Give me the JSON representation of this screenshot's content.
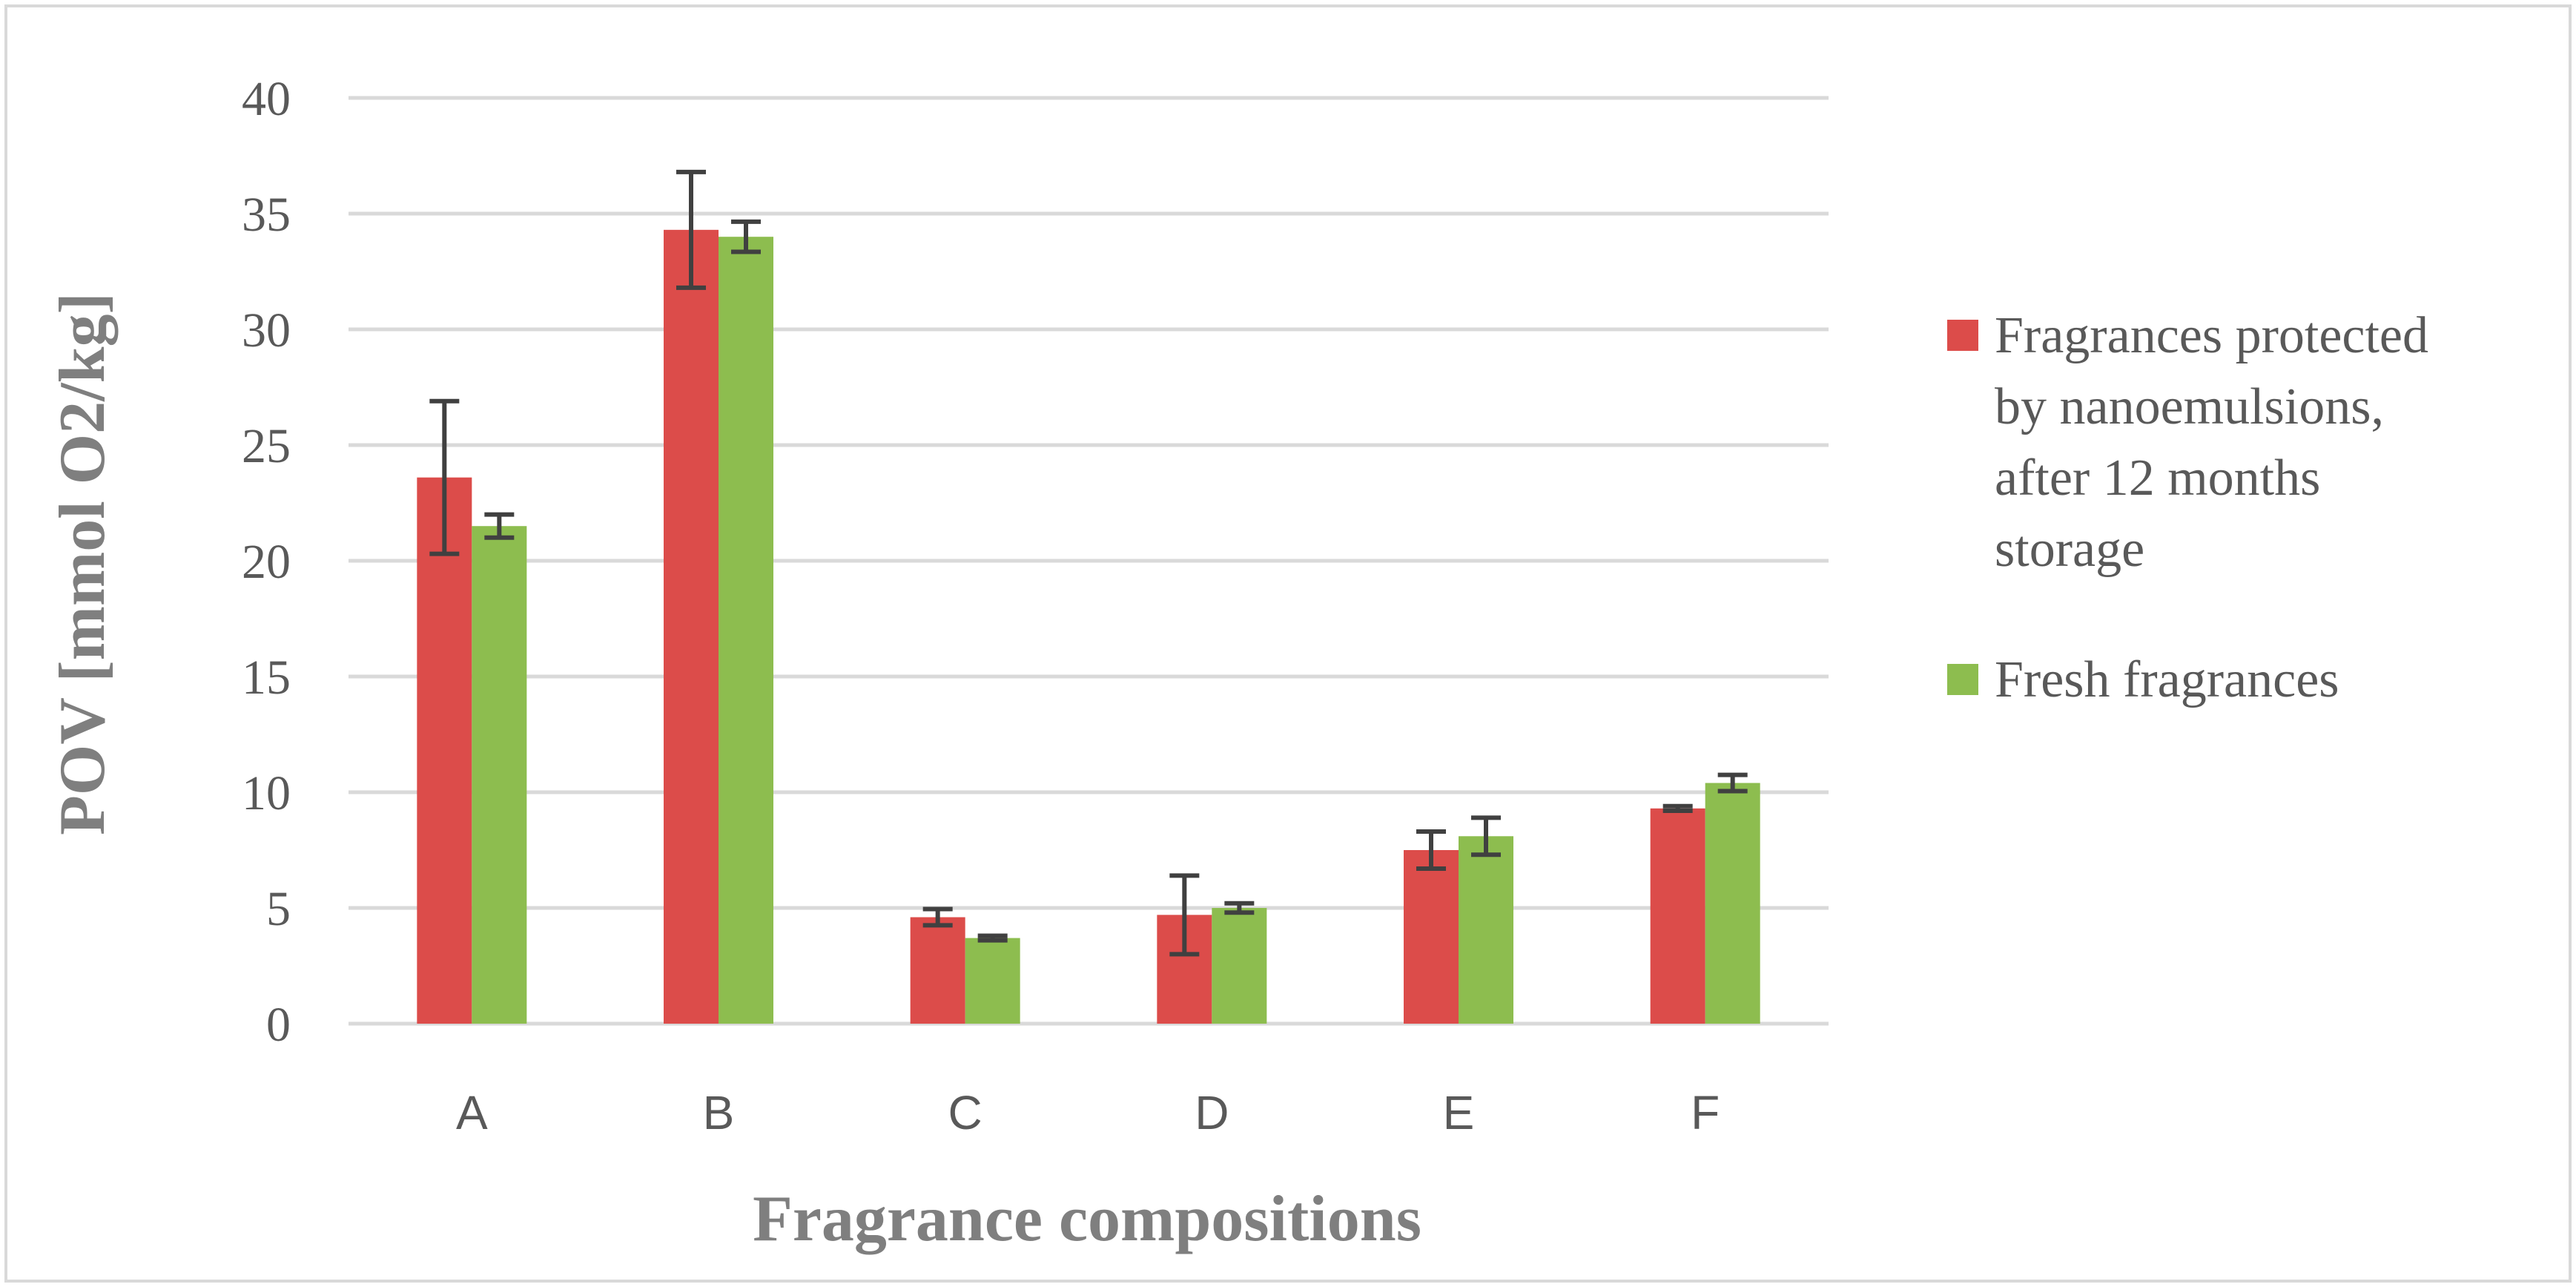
{
  "chart_data": {
    "type": "bar",
    "categories": [
      "A",
      "B",
      "C",
      "D",
      "E",
      "F"
    ],
    "series": [
      {
        "name": "Fragrances protected by nanoemulsions, after 12 months storage",
        "legend_lines": [
          "Fragrances protected",
          "by nanoemulsions,",
          "after 12 months",
          "storage"
        ],
        "color": "#dc4c4a",
        "values": [
          23.6,
          34.3,
          4.6,
          4.7,
          7.5,
          9.3
        ],
        "errors": [
          3.3,
          2.5,
          0.35,
          1.7,
          0.8,
          0.1
        ]
      },
      {
        "name": "Fresh fragrances",
        "legend_lines": [
          "Fresh fragrances"
        ],
        "color": "#8dbd4f",
        "values": [
          21.5,
          34.0,
          3.7,
          5.0,
          8.1,
          10.4
        ],
        "errors": [
          0.5,
          0.65,
          0.1,
          0.2,
          0.8,
          0.35
        ]
      }
    ],
    "xlabel": "Fragrance compositions",
    "ylabel": "POV [mmol O2/kg]",
    "ylim": [
      0,
      40
    ],
    "yticks": [
      0,
      5,
      10,
      15,
      20,
      25,
      30,
      35,
      40
    ],
    "grid": true,
    "legend": "right",
    "colors": {
      "grid": "#d9d9d9",
      "error_bar": "#404040",
      "border": "#d9d9d9"
    }
  }
}
